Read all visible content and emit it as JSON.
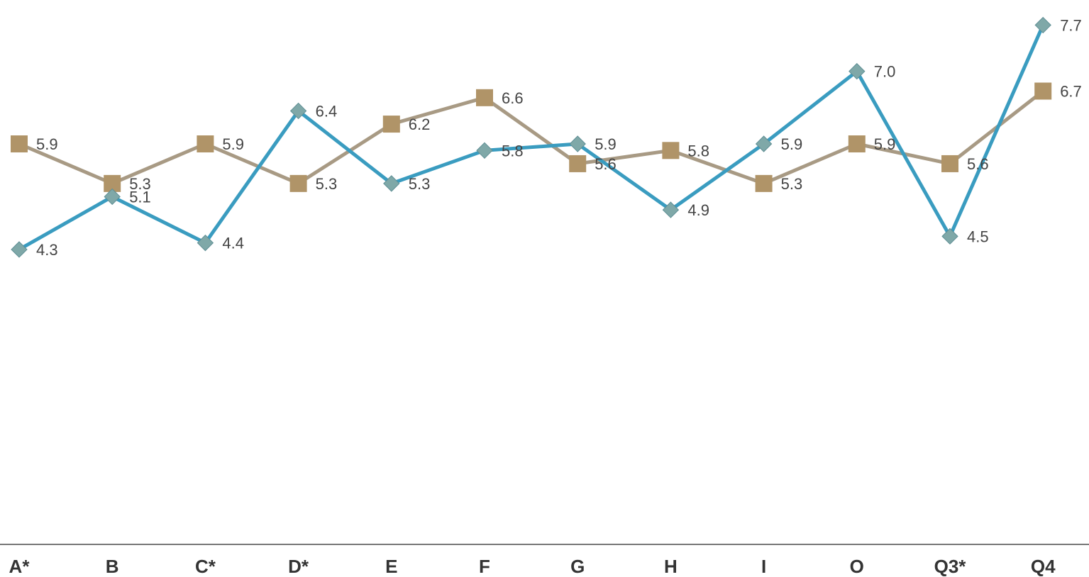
{
  "chart_data": {
    "type": "line",
    "title": "",
    "xlabel": "",
    "ylabel": "",
    "categories": [
      "A*",
      "B",
      "C*",
      "D*",
      "E",
      "F",
      "G",
      "H",
      "I",
      "O",
      "Q3*",
      "Q4"
    ],
    "ylim": [
      0,
      8.0
    ],
    "grid": false,
    "legend": "none",
    "series": [
      {
        "marker": "diamond",
        "color": "#3a9cc0",
        "marker_color": "#7fa8a8",
        "values": [
          4.3,
          5.1,
          4.4,
          6.4,
          5.3,
          5.8,
          5.9,
          4.9,
          5.9,
          7.0,
          4.5,
          7.7
        ],
        "labels": [
          "4.3",
          "5.1",
          "4.4",
          "6.4",
          "5.3",
          "5.8",
          "5.9",
          "4.9",
          "5.9",
          "7.0",
          "4.5",
          "7.7"
        ]
      },
      {
        "marker": "square",
        "color": "#a89a84",
        "marker_color": "#b09468",
        "values": [
          5.9,
          5.3,
          5.9,
          5.3,
          6.2,
          6.6,
          5.6,
          5.8,
          5.3,
          5.9,
          5.6,
          6.7
        ],
        "labels": [
          "5.9",
          "5.3",
          "5.9",
          "5.3",
          "6.2",
          "6.6",
          "5.6",
          "5.8",
          "5.3",
          "5.9",
          "5.6",
          "6.7"
        ]
      }
    ],
    "axis_color": "#777777"
  }
}
